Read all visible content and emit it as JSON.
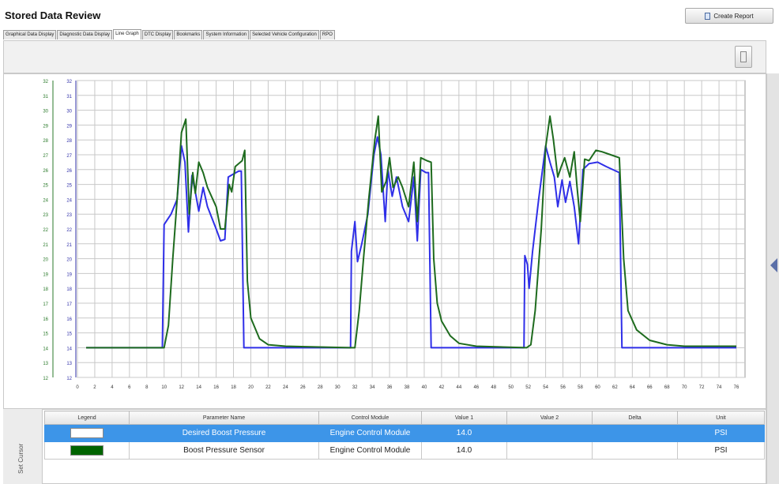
{
  "app": {
    "title": "Stored Data Review",
    "create_report_label": "Create Report"
  },
  "tabs": [
    {
      "label": "Graphical Data Display"
    },
    {
      "label": "Diagnostic Data Display"
    },
    {
      "label": "Line Graph",
      "active": true
    },
    {
      "label": "DTC Display"
    },
    {
      "label": "Bookmarks"
    },
    {
      "label": "System Information"
    },
    {
      "label": "Selected Vehicle Configuration"
    },
    {
      "label": "RPO"
    }
  ],
  "set_cursor_label": "Set Cursor",
  "table": {
    "headers": [
      "Legend",
      "Parameter Name",
      "Control Module",
      "Value 1",
      "Value 2",
      "Delta",
      "Unit"
    ],
    "rows": [
      {
        "legend_color": "#ffffff",
        "parameter": "Desired Boost Pressure",
        "module": "Engine Control Module",
        "value1": "14.0",
        "value2": "",
        "delta": "",
        "unit": "PSI",
        "selected": true
      },
      {
        "legend_color": "#006400",
        "parameter": "Boost Pressure Sensor",
        "module": "Engine Control Module",
        "value1": "14.0",
        "value2": "",
        "delta": "",
        "unit": "PSI",
        "selected": false
      }
    ]
  },
  "chart_data": {
    "type": "line",
    "xlim": [
      0,
      77
    ],
    "ylim": [
      12,
      32
    ],
    "x_ticks": [
      0,
      2,
      4,
      6,
      8,
      10,
      12,
      14,
      16,
      18,
      20,
      22,
      24,
      26,
      28,
      30,
      32,
      34,
      36,
      38,
      40,
      42,
      44,
      46,
      48,
      50,
      52,
      54,
      56,
      58,
      60,
      62,
      64,
      66,
      68,
      70,
      72,
      74,
      76
    ],
    "y_ticks": [
      12,
      13,
      14,
      15,
      16,
      17,
      18,
      19,
      20,
      21,
      22,
      23,
      24,
      25,
      26,
      27,
      28,
      29,
      30,
      31,
      32
    ],
    "grid": true,
    "series": [
      {
        "name": "Desired Boost Pressure",
        "color": "#2f2fe8",
        "points": [
          [
            1,
            14
          ],
          [
            9.8,
            14
          ],
          [
            10,
            22.3
          ],
          [
            10.8,
            23
          ],
          [
            11.5,
            24
          ],
          [
            12,
            27.6
          ],
          [
            12.4,
            26.5
          ],
          [
            12.8,
            21.8
          ],
          [
            13.2,
            25.6
          ],
          [
            13.6,
            24.5
          ],
          [
            14,
            23.2
          ],
          [
            14.5,
            24.8
          ],
          [
            15,
            23.5
          ],
          [
            16,
            22
          ],
          [
            16.5,
            21.2
          ],
          [
            17,
            21.3
          ],
          [
            17.4,
            25.5
          ],
          [
            18,
            25.7
          ],
          [
            18.6,
            25.9
          ],
          [
            18.9,
            25.9
          ],
          [
            19.2,
            14
          ],
          [
            31.5,
            14
          ],
          [
            31.6,
            20.5
          ],
          [
            32,
            22.5
          ],
          [
            32.3,
            19.8
          ],
          [
            32.8,
            21
          ],
          [
            33.5,
            23
          ],
          [
            34.2,
            27
          ],
          [
            34.6,
            28.2
          ],
          [
            35,
            27
          ],
          [
            35.5,
            22.5
          ],
          [
            35.8,
            26
          ],
          [
            36.3,
            24.2
          ],
          [
            36.8,
            25.5
          ],
          [
            37.5,
            23.5
          ],
          [
            38.2,
            22.5
          ],
          [
            38.8,
            25.5
          ],
          [
            39.2,
            21.2
          ],
          [
            39.6,
            26
          ],
          [
            40.2,
            25.8
          ],
          [
            40.5,
            25.8
          ],
          [
            40.8,
            14
          ],
          [
            51.5,
            14
          ],
          [
            51.6,
            20.2
          ],
          [
            51.9,
            19.6
          ],
          [
            52.1,
            18
          ],
          [
            52.5,
            20.5
          ],
          [
            53.2,
            24
          ],
          [
            54,
            27.6
          ],
          [
            54.5,
            26.5
          ],
          [
            55,
            25.5
          ],
          [
            55.4,
            23.5
          ],
          [
            55.9,
            25.3
          ],
          [
            56.3,
            23.8
          ],
          [
            56.8,
            25.2
          ],
          [
            57.3,
            23.5
          ],
          [
            57.8,
            21
          ],
          [
            58.3,
            26
          ],
          [
            59,
            26.4
          ],
          [
            60,
            26.5
          ],
          [
            61,
            26.2
          ],
          [
            62.5,
            25.8
          ],
          [
            62.8,
            14
          ],
          [
            76,
            14
          ]
        ]
      },
      {
        "name": "Boost Pressure Sensor",
        "color": "#1e6b1e",
        "points": [
          [
            1,
            14
          ],
          [
            10,
            14
          ],
          [
            10.5,
            15.5
          ],
          [
            11,
            20
          ],
          [
            11.5,
            24
          ],
          [
            12,
            28.5
          ],
          [
            12.5,
            29.4
          ],
          [
            12.9,
            23
          ],
          [
            13.3,
            25.8
          ],
          [
            13.6,
            24.4
          ],
          [
            14,
            26.5
          ],
          [
            14.5,
            25.8
          ],
          [
            15,
            24.8
          ],
          [
            16,
            23.5
          ],
          [
            16.5,
            22
          ],
          [
            17,
            22
          ],
          [
            17.5,
            25
          ],
          [
            17.8,
            24.5
          ],
          [
            18.2,
            26.2
          ],
          [
            19,
            26.6
          ],
          [
            19.3,
            27.3
          ],
          [
            19.6,
            18.5
          ],
          [
            20,
            16
          ],
          [
            21,
            14.6
          ],
          [
            22,
            14.2
          ],
          [
            24,
            14.1
          ],
          [
            31.5,
            14
          ],
          [
            32,
            14
          ],
          [
            32.5,
            16.5
          ],
          [
            33,
            20
          ],
          [
            33.6,
            24
          ],
          [
            34.3,
            28
          ],
          [
            34.7,
            29.6
          ],
          [
            35.1,
            24.5
          ],
          [
            35.6,
            25.2
          ],
          [
            36,
            26.8
          ],
          [
            36.4,
            24.8
          ],
          [
            37,
            25.5
          ],
          [
            37.5,
            24.8
          ],
          [
            38.2,
            23.5
          ],
          [
            38.8,
            26.5
          ],
          [
            39.2,
            22.5
          ],
          [
            39.6,
            26.8
          ],
          [
            40.3,
            26.6
          ],
          [
            40.8,
            26.5
          ],
          [
            41.1,
            20
          ],
          [
            41.5,
            17
          ],
          [
            42,
            15.8
          ],
          [
            43,
            14.8
          ],
          [
            44,
            14.3
          ],
          [
            46,
            14.1
          ],
          [
            51.8,
            14
          ],
          [
            52.3,
            14.2
          ],
          [
            52.8,
            16.5
          ],
          [
            53.5,
            22
          ],
          [
            54,
            27.5
          ],
          [
            54.5,
            29.6
          ],
          [
            54.9,
            28
          ],
          [
            55.4,
            25.5
          ],
          [
            55.8,
            26.2
          ],
          [
            56.2,
            26.8
          ],
          [
            56.8,
            25.5
          ],
          [
            57.3,
            27.2
          ],
          [
            57.6,
            25
          ],
          [
            58,
            22.5
          ],
          [
            58.5,
            26.7
          ],
          [
            59,
            26.6
          ],
          [
            59.8,
            27.3
          ],
          [
            60.5,
            27.2
          ],
          [
            61.5,
            27
          ],
          [
            62.5,
            26.8
          ],
          [
            63,
            20
          ],
          [
            63.5,
            16.5
          ],
          [
            64.5,
            15.2
          ],
          [
            66,
            14.5
          ],
          [
            68,
            14.2
          ],
          [
            70,
            14.1
          ],
          [
            76,
            14.1
          ]
        ]
      }
    ]
  }
}
